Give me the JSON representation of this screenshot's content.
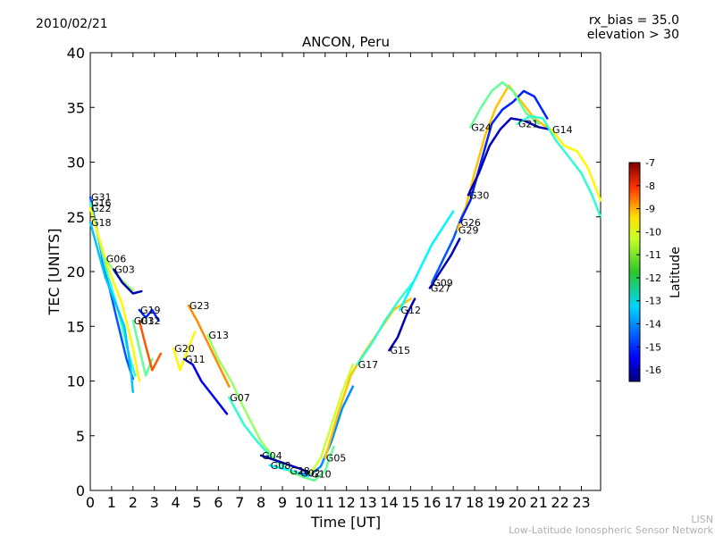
{
  "header": {
    "date": "2010/02/21",
    "rx_bias": "rx_bias = 35.0",
    "elevation": "elevation > 30"
  },
  "footer": {
    "line1": "LISN",
    "line2": "Low-Latitude Ionospheric Sensor Network"
  },
  "chart_data": {
    "type": "line",
    "title": "ANCON, Peru",
    "xlabel": "Time [UT]",
    "ylabel": "TEC [UNITS]",
    "xlim": [
      0,
      23.9
    ],
    "ylim": [
      0,
      40
    ],
    "x_ticks": [
      "0",
      "1",
      "2",
      "3",
      "4",
      "5",
      "6",
      "7",
      "8",
      "9",
      "10",
      "11",
      "12",
      "13",
      "14",
      "15",
      "16",
      "17",
      "18",
      "19",
      "20",
      "21",
      "22",
      "23"
    ],
    "y_ticks": [
      "0",
      "5",
      "10",
      "15",
      "20",
      "25",
      "30",
      "35",
      "40"
    ],
    "grid": false,
    "colorbar": {
      "label": "Latitude",
      "range": [
        -16.5,
        -7
      ],
      "ticks": [
        "-7",
        "-8",
        "-9",
        "-10",
        "-11",
        "-12",
        "-13",
        "-14",
        "-15",
        "-16"
      ],
      "colormap": "jet"
    },
    "series": [
      {
        "name": "G31",
        "lat": -14.5,
        "points": [
          [
            0,
            26.8
          ],
          [
            0.6,
            21
          ],
          [
            1.2,
            16
          ],
          [
            1.7,
            12
          ],
          [
            2.0,
            10.2
          ]
        ]
      },
      {
        "name": "G16",
        "lat": -12.5,
        "points": [
          [
            0,
            26.3
          ],
          [
            0.7,
            20.5
          ],
          [
            1.3,
            16.5
          ],
          [
            1.8,
            12.5
          ],
          [
            2.1,
            10.5
          ]
        ]
      },
      {
        "name": "G22",
        "lat": -10.5,
        "points": [
          [
            0,
            25.8
          ],
          [
            0.8,
            20.5
          ],
          [
            1.5,
            17
          ],
          [
            2.0,
            13
          ],
          [
            2.3,
            10
          ]
        ]
      },
      {
        "name": "G18",
        "lat": -13.5,
        "points": [
          [
            0,
            24.5
          ],
          [
            0.7,
            19.5
          ],
          [
            1.2,
            17
          ],
          [
            1.6,
            15
          ],
          [
            1.9,
            11
          ],
          [
            2.0,
            9
          ]
        ]
      },
      {
        "name": "G06",
        "lat": -11.5,
        "points": [
          [
            0.7,
            21.2
          ],
          [
            1.2,
            19.8
          ],
          [
            1.7,
            18.8
          ],
          [
            2.0,
            18.3
          ]
        ]
      },
      {
        "name": "G03",
        "lat": -16.0,
        "points": [
          [
            1.1,
            20.2
          ],
          [
            1.5,
            19.0
          ],
          [
            2.0,
            18.0
          ],
          [
            2.4,
            18.2
          ]
        ]
      },
      {
        "name": "G19",
        "lat": -15.0,
        "points": [
          [
            2.3,
            16.5
          ],
          [
            2.6,
            15.8
          ],
          [
            2.9,
            16.5
          ],
          [
            3.2,
            15.5
          ]
        ]
      },
      {
        "name": "G01",
        "lat": -12.0,
        "points": [
          [
            2.0,
            15.5
          ],
          [
            2.3,
            13
          ],
          [
            2.6,
            10.5
          ],
          [
            2.9,
            12.0
          ]
        ]
      },
      {
        "name": "G32",
        "lat": -9.0,
        "points": [
          [
            2.3,
            15.5
          ],
          [
            2.6,
            13.2
          ],
          [
            2.9,
            11.0
          ],
          [
            3.3,
            12.5
          ]
        ]
      },
      {
        "name": "G23",
        "lat": -9.5,
        "points": [
          [
            4.6,
            16.9
          ],
          [
            5.0,
            15.5
          ],
          [
            5.5,
            13.5
          ],
          [
            6.0,
            11.5
          ],
          [
            6.5,
            9.5
          ]
        ]
      },
      {
        "name": "G20",
        "lat": -10.5,
        "points": [
          [
            3.9,
            13.0
          ],
          [
            4.2,
            11.0
          ],
          [
            4.5,
            12.5
          ],
          [
            4.9,
            14.5
          ]
        ]
      },
      {
        "name": "G11",
        "lat": -15.5,
        "points": [
          [
            4.4,
            12.0
          ],
          [
            4.8,
            11.5
          ],
          [
            5.2,
            10.0
          ],
          [
            5.8,
            8.5
          ],
          [
            6.4,
            7.0
          ]
        ]
      },
      {
        "name": "G13",
        "lat": -11.5,
        "points": [
          [
            5.5,
            14.2
          ],
          [
            6.0,
            12.0
          ],
          [
            6.6,
            10.0
          ],
          [
            7.2,
            7.5
          ],
          [
            8.0,
            4.5
          ],
          [
            8.8,
            2.5
          ],
          [
            9.5,
            1.5
          ]
        ]
      },
      {
        "name": "G07",
        "lat": -12.5,
        "points": [
          [
            6.5,
            8.5
          ],
          [
            7.2,
            6.0
          ],
          [
            7.8,
            4.5
          ],
          [
            8.5,
            3.0
          ],
          [
            9.2,
            2.0
          ]
        ]
      },
      {
        "name": "G04",
        "lat": -16.0,
        "points": [
          [
            8.0,
            3.2
          ],
          [
            8.6,
            2.8
          ],
          [
            9.2,
            2.4
          ],
          [
            9.8,
            2.0
          ],
          [
            10.4,
            1.5
          ]
        ]
      },
      {
        "name": "G08",
        "lat": -13.0,
        "points": [
          [
            8.4,
            2.3
          ],
          [
            9.0,
            2.0
          ],
          [
            9.6,
            1.7
          ],
          [
            10.2,
            1.3
          ]
        ]
      },
      {
        "name": "G28",
        "lat": -12.0,
        "points": [
          [
            9.3,
            1.8
          ],
          [
            10.0,
            1.2
          ],
          [
            10.5,
            0.9
          ],
          [
            11.0,
            1.8
          ],
          [
            11.4,
            4.0
          ]
        ]
      },
      {
        "name": "G02",
        "lat": -14.0,
        "points": [
          [
            9.8,
            1.6
          ],
          [
            10.3,
            1.4
          ],
          [
            10.8,
            2.2
          ],
          [
            11.3,
            4.5
          ],
          [
            11.8,
            7.5
          ],
          [
            12.3,
            9.5
          ]
        ]
      },
      {
        "name": "G10",
        "lat": -11.0,
        "points": [
          [
            10.3,
            1.5
          ],
          [
            10.8,
            3.0
          ],
          [
            11.3,
            6.0
          ],
          [
            11.8,
            9.0
          ],
          [
            12.3,
            11.5
          ]
        ]
      },
      {
        "name": "G05",
        "lat": -10.0,
        "points": [
          [
            11.0,
            3.0
          ],
          [
            11.6,
            7.0
          ],
          [
            12.2,
            10.5
          ],
          [
            12.8,
            12.5
          ],
          [
            13.5,
            14.5
          ],
          [
            14.2,
            16.5
          ],
          [
            15.0,
            17.5
          ]
        ]
      },
      {
        "name": "G17",
        "lat": -12.5,
        "points": [
          [
            12.5,
            11.5
          ],
          [
            13.2,
            13.5
          ],
          [
            13.8,
            15.5
          ],
          [
            14.5,
            17.5
          ],
          [
            15.1,
            19.0
          ]
        ]
      },
      {
        "name": "G15",
        "lat": -16.0,
        "points": [
          [
            14.0,
            12.8
          ],
          [
            14.4,
            14.0
          ],
          [
            14.8,
            16.0
          ],
          [
            15.2,
            17.5
          ]
        ]
      },
      {
        "name": "G12",
        "lat": -13.0,
        "points": [
          [
            14.5,
            16.5
          ],
          [
            15.0,
            18.5
          ],
          [
            15.5,
            20.5
          ],
          [
            16.0,
            22.5
          ],
          [
            16.5,
            24.0
          ],
          [
            17.0,
            25.5
          ]
        ]
      },
      {
        "name": "G27",
        "lat": -16.0,
        "points": [
          [
            15.9,
            18.5
          ],
          [
            16.4,
            20.0
          ],
          [
            16.9,
            21.5
          ],
          [
            17.3,
            23.0
          ]
        ]
      },
      {
        "name": "G09",
        "lat": -14.5,
        "points": [
          [
            16.0,
            19.0
          ],
          [
            16.5,
            21.0
          ],
          [
            17.0,
            23.0
          ],
          [
            17.5,
            25.5
          ]
        ]
      },
      {
        "name": "G29",
        "lat": -10.0,
        "points": [
          [
            17.2,
            23.8
          ],
          [
            17.6,
            26.0
          ],
          [
            18.0,
            29.0
          ],
          [
            18.5,
            32.5
          ],
          [
            19.0,
            35.0
          ],
          [
            19.6,
            37.0
          ],
          [
            20.2,
            35.5
          ],
          [
            20.8,
            34.0
          ],
          [
            21.5,
            33.0
          ]
        ]
      },
      {
        "name": "G26",
        "lat": -15.0,
        "points": [
          [
            17.3,
            24.5
          ],
          [
            17.8,
            26.5
          ],
          [
            18.3,
            30.0
          ],
          [
            18.8,
            33.5
          ],
          [
            19.3,
            34.8
          ],
          [
            19.8,
            35.5
          ],
          [
            20.3,
            36.5
          ],
          [
            20.8,
            36.0
          ],
          [
            21.4,
            34.0
          ]
        ]
      },
      {
        "name": "G30",
        "lat": -16.0,
        "points": [
          [
            17.7,
            27.0
          ],
          [
            18.2,
            29.0
          ],
          [
            18.7,
            31.5
          ],
          [
            19.2,
            33.0
          ],
          [
            19.7,
            34.0
          ],
          [
            20.3,
            33.8
          ],
          [
            21.0,
            33.2
          ],
          [
            21.5,
            33.0
          ]
        ]
      },
      {
        "name": "G24",
        "lat": -12.0,
        "points": [
          [
            17.8,
            33.2
          ],
          [
            18.3,
            35.0
          ],
          [
            18.8,
            36.5
          ],
          [
            19.3,
            37.3
          ],
          [
            19.8,
            36.5
          ],
          [
            20.4,
            34.5
          ],
          [
            21.0,
            33.5
          ]
        ]
      },
      {
        "name": "G21",
        "lat": -12.5,
        "points": [
          [
            20.0,
            33.5
          ],
          [
            20.6,
            34.2
          ],
          [
            21.2,
            34.0
          ],
          [
            21.8,
            32.0
          ],
          [
            22.4,
            30.5
          ],
          [
            23.0,
            29.0
          ],
          [
            23.5,
            27.0
          ],
          [
            23.9,
            25.0
          ]
        ]
      },
      {
        "name": "G14",
        "lat": -10.5,
        "points": [
          [
            21.6,
            33.0
          ],
          [
            22.2,
            31.5
          ],
          [
            22.8,
            31.0
          ],
          [
            23.3,
            29.5
          ],
          [
            23.9,
            26.5
          ]
        ]
      }
    ]
  }
}
